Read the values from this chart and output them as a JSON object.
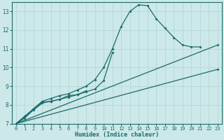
{
  "xlabel": "Humidex (Indice chaleur)",
  "bg_color": "#cde8e8",
  "line_color": "#1a6b6b",
  "grid_color": "#b0d8d8",
  "xlim": [
    -0.5,
    23.5
  ],
  "ylim": [
    7,
    13.5
  ],
  "yticks": [
    7,
    8,
    9,
    10,
    11,
    12,
    13
  ],
  "xticks": [
    0,
    1,
    2,
    3,
    4,
    5,
    6,
    7,
    8,
    9,
    10,
    11,
    12,
    13,
    14,
    15,
    16,
    17,
    18,
    19,
    20,
    21,
    22,
    23
  ],
  "line1_x": [
    0,
    1,
    2,
    3,
    4,
    5,
    6,
    7,
    8,
    9,
    10,
    11,
    12,
    13,
    14,
    15,
    16,
    17,
    18,
    19,
    20,
    21
  ],
  "line1_y": [
    7.0,
    7.4,
    7.8,
    8.2,
    8.35,
    8.5,
    8.6,
    8.8,
    9.0,
    9.35,
    10.0,
    11.0,
    12.2,
    13.0,
    13.35,
    13.3,
    12.6,
    12.1,
    11.6,
    11.2,
    11.1,
    11.1
  ],
  "line2_x": [
    0,
    3,
    4,
    5,
    6,
    7,
    8,
    9,
    10,
    11
  ],
  "line2_y": [
    7.0,
    8.1,
    8.2,
    8.3,
    8.42,
    8.55,
    8.7,
    8.85,
    9.3,
    10.8
  ],
  "line3_x": [
    0,
    1,
    2,
    3,
    4,
    5,
    6,
    7,
    8
  ],
  "line3_y": [
    7.0,
    7.3,
    7.75,
    8.15,
    8.2,
    8.3,
    8.5,
    8.55,
    8.75
  ],
  "line4_x": [
    0,
    23
  ],
  "line4_y": [
    7.0,
    11.2
  ],
  "line5_x": [
    0,
    23
  ],
  "line5_y": [
    7.0,
    9.9
  ]
}
